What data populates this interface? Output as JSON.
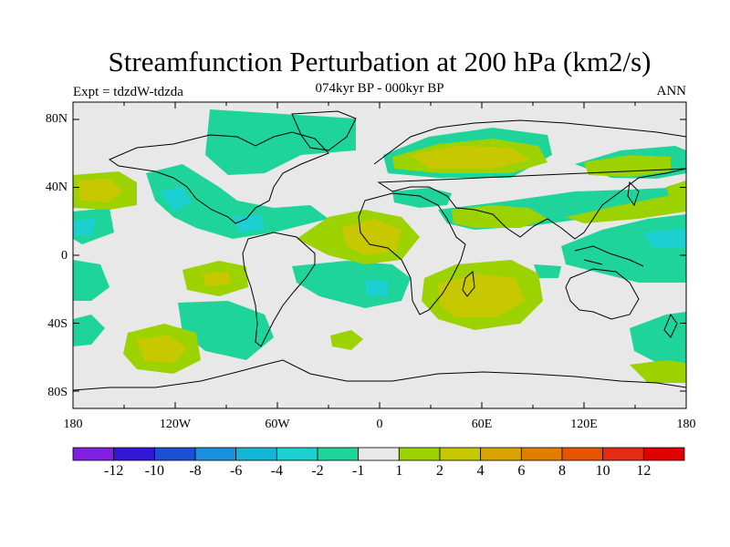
{
  "title": "Streamfunction Perturbation at 200 hPa (km2/s)",
  "experiment": "Expt = tdzdW-tdzda",
  "period": "074kyr BP - 000kyr BP",
  "season": "ANN",
  "lat_labels": [
    "80N",
    "40N",
    "0",
    "40S",
    "80S"
  ],
  "lon_labels": [
    "180",
    "120W",
    "60W",
    "0",
    "60E",
    "120E",
    "180"
  ],
  "colorbar": {
    "colors": [
      "#7f1fe0",
      "#3217d6",
      "#1c4fd1",
      "#1c8fdc",
      "#14b6d6",
      "#1ccfd0",
      "#1ed49a",
      "#e8e8e8",
      "#9bd200",
      "#c8c800",
      "#d9a300",
      "#e07e00",
      "#e55500",
      "#e22d14",
      "#e00000"
    ],
    "labels": [
      "-12",
      "-10",
      "-8",
      "-6",
      "-4",
      "-2",
      "-1",
      "1",
      "2",
      "4",
      "6",
      "8",
      "10",
      "12"
    ]
  },
  "colors": {
    "neg_light": "#1ed49a",
    "neg_mid": "#1ccfd0",
    "neg_strong": "#14b6d6",
    "pos_light": "#9bd200",
    "pos_mid": "#c8c800",
    "pos_strong": "#d9a300",
    "neutral": "#e8e8e8"
  }
}
